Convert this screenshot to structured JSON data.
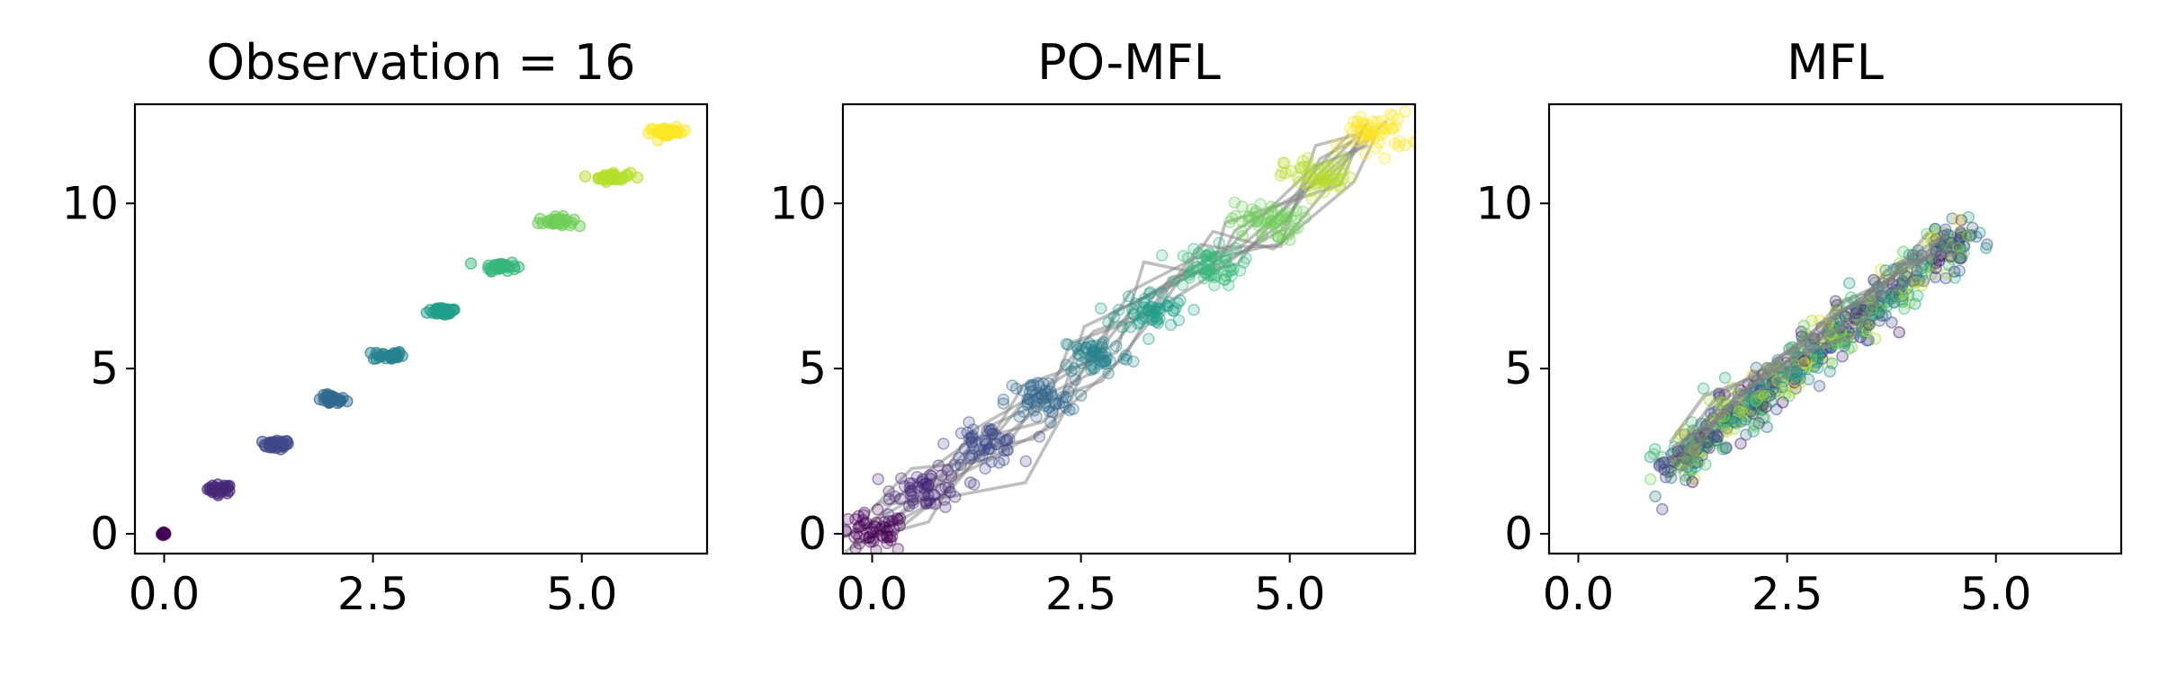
{
  "chart_data": [
    {
      "type": "scatter",
      "title": "Observation = 16",
      "xlim": [
        -0.35,
        6.5
      ],
      "ylim": [
        -0.6,
        13.0
      ],
      "xticks": [
        0.0,
        2.5,
        5.0
      ],
      "xtick_labels": [
        "0.0",
        "2.5",
        "5.0"
      ],
      "yticks": [
        0,
        5,
        10
      ],
      "ytick_labels": [
        "0",
        "5",
        "10"
      ],
      "colormap": "viridis",
      "clusters": [
        {
          "x": 0.0,
          "y": 0.0,
          "t": 0.0
        },
        {
          "x": 0.67,
          "y": 1.35,
          "t": 0.111
        },
        {
          "x": 1.34,
          "y": 2.7,
          "t": 0.222
        },
        {
          "x": 2.01,
          "y": 4.05,
          "t": 0.333
        },
        {
          "x": 2.68,
          "y": 5.4,
          "t": 0.444
        },
        {
          "x": 3.35,
          "y": 6.75,
          "t": 0.556
        },
        {
          "x": 4.02,
          "y": 8.1,
          "t": 0.667
        },
        {
          "x": 4.69,
          "y": 9.45,
          "t": 0.778
        },
        {
          "x": 5.36,
          "y": 10.8,
          "t": 0.889
        },
        {
          "x": 6.03,
          "y": 12.15,
          "t": 1.0
        }
      ]
    },
    {
      "type": "scatter",
      "title": "PO-MFL",
      "xlim": [
        -0.35,
        6.5
      ],
      "ylim": [
        -0.6,
        13.0
      ],
      "xticks": [
        0.0,
        2.5,
        5.0
      ],
      "xtick_labels": [
        "0.0",
        "2.5",
        "5.0"
      ],
      "yticks": [
        0,
        5,
        10
      ],
      "ytick_labels": [
        "0",
        "5",
        "10"
      ],
      "colormap": "viridis",
      "clusters": [
        {
          "x": 0.0,
          "y": 0.0,
          "t": 0.0
        },
        {
          "x": 0.67,
          "y": 1.35,
          "t": 0.111
        },
        {
          "x": 1.34,
          "y": 2.7,
          "t": 0.222
        },
        {
          "x": 2.01,
          "y": 4.05,
          "t": 0.333
        },
        {
          "x": 2.68,
          "y": 5.4,
          "t": 0.444
        },
        {
          "x": 3.35,
          "y": 6.75,
          "t": 0.556
        },
        {
          "x": 4.02,
          "y": 8.1,
          "t": 0.667
        },
        {
          "x": 4.69,
          "y": 9.45,
          "t": 0.778
        },
        {
          "x": 5.36,
          "y": 10.8,
          "t": 0.889
        },
        {
          "x": 6.03,
          "y": 12.15,
          "t": 1.0
        }
      ]
    },
    {
      "type": "scatter",
      "title": "MFL",
      "xlim": [
        -0.35,
        6.5
      ],
      "ylim": [
        -0.6,
        13.0
      ],
      "xticks": [
        0.0,
        2.5,
        5.0
      ],
      "xtick_labels": [
        "0.0",
        "2.5",
        "5.0"
      ],
      "yticks": [
        0,
        5,
        10
      ],
      "ytick_labels": [
        "0",
        "5",
        "10"
      ],
      "colormap": "viridis",
      "point_range": {
        "x": [
          0.8,
          4.9
        ],
        "y": [
          1.6,
          9.6
        ]
      },
      "mean_trajectory": [
        {
          "x": 1.15,
          "y": 2.3
        },
        {
          "x": 1.8,
          "y": 3.8
        },
        {
          "x": 2.5,
          "y": 5.2
        },
        {
          "x": 3.2,
          "y": 6.6
        },
        {
          "x": 3.8,
          "y": 7.7
        },
        {
          "x": 4.4,
          "y": 8.8
        }
      ]
    }
  ],
  "colors": {
    "viridis": [
      "#440154",
      "#482878",
      "#3e4989",
      "#31688e",
      "#26828e",
      "#1f9e89",
      "#35b779",
      "#6ece58",
      "#b5de2b",
      "#fde725"
    ],
    "trajectory": "#808080",
    "axes": "#000000"
  }
}
